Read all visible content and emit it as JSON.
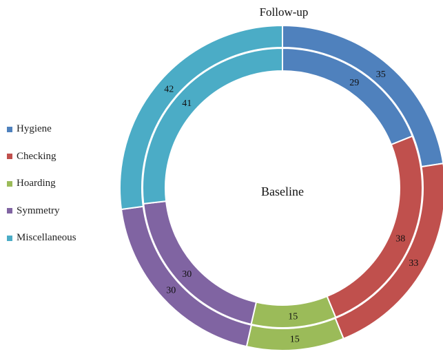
{
  "chart_data": {
    "type": "doughnut",
    "ring_titles": {
      "outer": "Follow-up",
      "inner": "Baseline"
    },
    "categories": [
      "Hygiene",
      "Checking",
      "Hoarding",
      "Symmetry",
      "Miscellaneous"
    ],
    "colors": [
      "#4F81BD",
      "#C0504D",
      "#9BBB59",
      "#8064A2",
      "#4BACC6"
    ],
    "series": [
      {
        "name": "Follow-up",
        "ring": "outer",
        "values": [
          35,
          33,
          15,
          30,
          42
        ]
      },
      {
        "name": "Baseline",
        "ring": "inner",
        "values": [
          29,
          38,
          15,
          30,
          41
        ]
      }
    ],
    "legend_position": "left"
  }
}
